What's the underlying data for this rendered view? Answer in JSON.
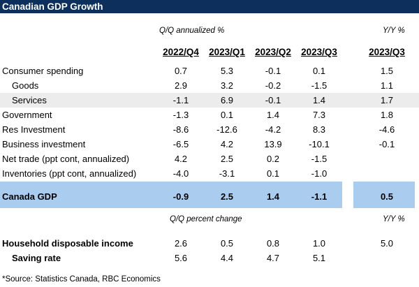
{
  "title": "Canadian GDP Growth",
  "section1": {
    "qq_label": "Q/Q annualized %",
    "yy_label": "Y/Y %",
    "columns": [
      "2022/Q4",
      "2023/Q1",
      "2023/Q2",
      "2023/Q3"
    ],
    "yy_column": "2023/Q3",
    "rows": [
      {
        "label": "Consumer spending",
        "values": [
          "0.7",
          "5.3",
          "-0.1",
          "0.1"
        ],
        "yy": "1.5"
      },
      {
        "label": "Goods",
        "values": [
          "2.9",
          "3.2",
          "-0.2",
          "-1.5"
        ],
        "yy": "1.1"
      },
      {
        "label": "Services",
        "values": [
          "-1.1",
          "6.9",
          "-0.1",
          "1.4"
        ],
        "yy": "1.7"
      },
      {
        "label": "Government",
        "values": [
          "-1.3",
          "0.1",
          "1.4",
          "7.3"
        ],
        "yy": "1.8"
      },
      {
        "label": "Res Investment",
        "values": [
          "-8.6",
          "-12.6",
          "-4.2",
          "8.3"
        ],
        "yy": "-4.6"
      },
      {
        "label": "Business investment",
        "values": [
          "-6.5",
          "4.2",
          "13.9",
          "-10.1"
        ],
        "yy": "-0.1"
      },
      {
        "label": "Net trade (ppt cont, annualized)",
        "values": [
          "4.2",
          "2.5",
          "0.2",
          "-1.5"
        ],
        "yy": ""
      },
      {
        "label": "Inventories (ppt cont, annualized)",
        "values": [
          "-4.0",
          "-3.1",
          "0.1",
          "-1.0"
        ],
        "yy": ""
      }
    ],
    "total": {
      "label": "Canada GDP",
      "values": [
        "-0.9",
        "2.5",
        "1.4",
        "-1.1"
      ],
      "yy": "0.5"
    }
  },
  "section2": {
    "qq_label": "Q/Q percent change",
    "yy_label": "Y/Y %",
    "rows": [
      {
        "label": "Household disposable income",
        "values": [
          "2.6",
          "0.5",
          "0.8",
          "1.0"
        ],
        "yy": "5.0"
      },
      {
        "label": "Saving rate",
        "values": [
          "5.6",
          "4.4",
          "4.7",
          "5.1"
        ],
        "yy": ""
      }
    ]
  },
  "source": "*Source:  Statistics Canada, RBC Economics",
  "colors": {
    "title_bg": "#0d2f5c",
    "highlight_blue": "#a9ccef",
    "band_gray": "#ececec"
  }
}
